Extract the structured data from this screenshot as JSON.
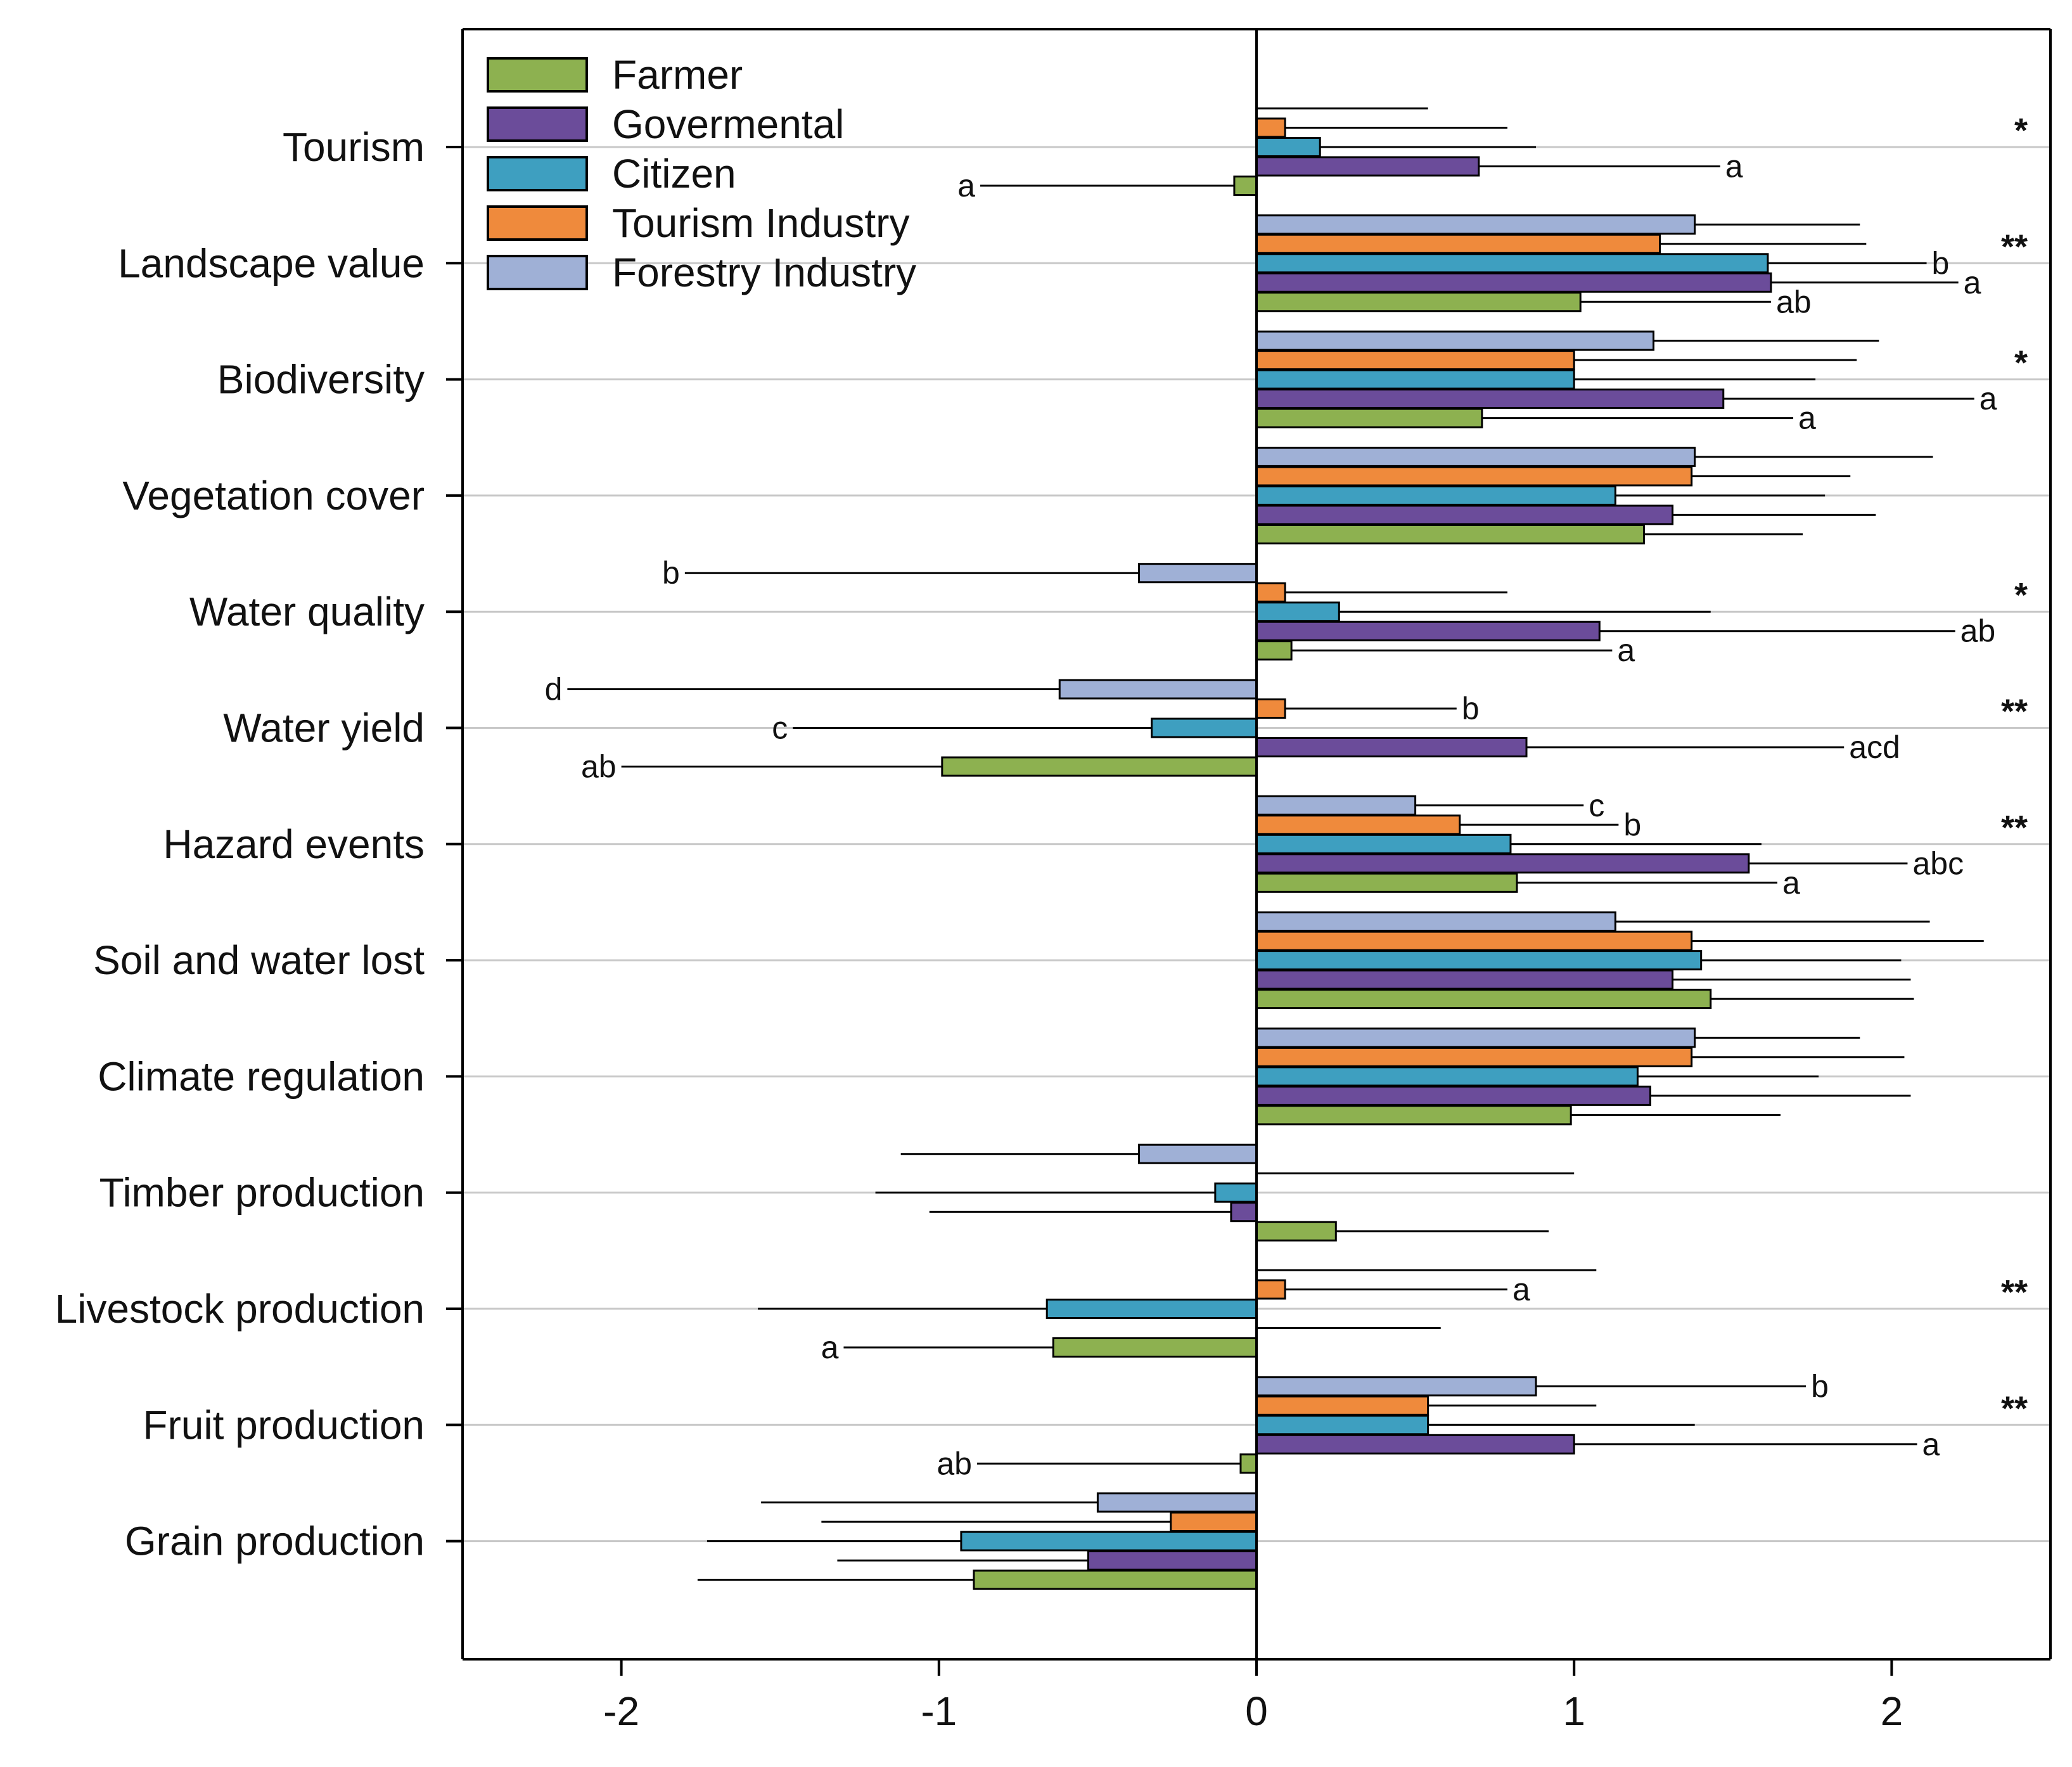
{
  "chart_data": {
    "type": "bar",
    "orientation": "horizontal",
    "title": "",
    "xlabel": "",
    "ylabel": "",
    "xlim": [
      -2.5,
      2.5
    ],
    "x_ticks": [
      -2,
      -1,
      0,
      1,
      2
    ],
    "x_tick_labels": [
      "-2",
      "-1",
      "0",
      "1",
      "2"
    ],
    "grid": "horizontal lines at categories",
    "legend_position": "top-left",
    "colors": {
      "Farmer": "#8db150",
      "Govermental": "#6b4c9a",
      "Citizen": "#3e9fc0",
      "Tourism Industry": "#ef8a3c",
      "Forestry Industry": "#9fb0d6",
      "axis": "#000000",
      "gridline": "#c8c8c8"
    },
    "legend": [
      "Farmer",
      "Govermental",
      "Citizen",
      "Tourism Industry",
      "Forestry Industry"
    ],
    "bar_order_bottom_to_top": [
      "Farmer",
      "Govermental",
      "Citizen",
      "Tourism Industry",
      "Forestry Industry"
    ],
    "categories": [
      "Tourism",
      "Landscape value",
      "Biodiversity",
      "Vegetation cover",
      "Water quality",
      "Water yield",
      "Hazard events",
      "Soil and water lost",
      "Climate regulation",
      "Timber production",
      "Livestock production",
      "Fruit production",
      "Grain production"
    ],
    "series": [
      {
        "name": "Farmer",
        "values": [
          -0.07,
          1.02,
          0.71,
          1.22,
          0.11,
          -0.99,
          0.82,
          1.43,
          0.99,
          0.25,
          -0.64,
          -0.05,
          -0.89
        ],
        "errors": [
          0.8,
          0.6,
          0.98,
          0.5,
          1.01,
          1.01,
          0.82,
          0.64,
          0.66,
          0.67,
          0.66,
          0.83,
          0.87
        ]
      },
      {
        "name": "Govermental",
        "values": [
          0.7,
          1.62,
          1.47,
          1.31,
          1.08,
          0.85,
          1.55,
          1.31,
          1.24,
          -0.08,
          0.0,
          1.0,
          -0.53
        ],
        "errors": [
          0.76,
          0.59,
          0.79,
          0.64,
          1.12,
          1.0,
          0.5,
          0.75,
          0.82,
          0.95,
          0.58,
          1.08,
          0.79
        ]
      },
      {
        "name": "Citizen",
        "values": [
          0.2,
          1.61,
          1.0,
          1.13,
          0.26,
          -0.33,
          0.8,
          1.4,
          1.2,
          -0.13,
          -0.66,
          0.54,
          -0.93
        ],
        "errors": [
          0.68,
          0.5,
          0.76,
          0.66,
          1.17,
          1.13,
          0.79,
          0.63,
          0.57,
          1.07,
          0.91,
          0.84,
          0.8
        ]
      },
      {
        "name": "Tourism Industry",
        "values": [
          0.09,
          1.27,
          1.0,
          1.37,
          0.09,
          0.09,
          0.64,
          1.37,
          1.37,
          0.0,
          0.09,
          0.54,
          -0.27
        ],
        "errors": [
          0.7,
          0.65,
          0.89,
          0.5,
          0.7,
          0.54,
          0.5,
          0.92,
          0.67,
          1.0,
          0.7,
          0.53,
          1.1
        ]
      },
      {
        "name": "Forestry Industry",
        "values": [
          0.0,
          1.38,
          1.25,
          1.38,
          -0.37,
          -0.62,
          0.5,
          1.13,
          1.38,
          -0.37,
          0.0,
          0.88,
          -0.5
        ],
        "errors": [
          0.54,
          0.52,
          0.71,
          0.75,
          1.43,
          1.55,
          0.53,
          0.99,
          0.52,
          0.75,
          1.07,
          0.85,
          1.06
        ]
      }
    ],
    "annotations": [
      {
        "category": "Tourism",
        "series": "Farmer",
        "text": "a"
      },
      {
        "category": "Tourism",
        "series": "Govermental",
        "text": "a"
      },
      {
        "category": "Landscape value",
        "series": "Farmer",
        "text": "ab"
      },
      {
        "category": "Landscape value",
        "series": "Govermental",
        "text": "a"
      },
      {
        "category": "Landscape value",
        "series": "Citizen",
        "text": "b"
      },
      {
        "category": "Biodiversity",
        "series": "Farmer",
        "text": "a"
      },
      {
        "category": "Biodiversity",
        "series": "Govermental",
        "text": "a"
      },
      {
        "category": "Water quality",
        "series": "Farmer",
        "text": "a"
      },
      {
        "category": "Water quality",
        "series": "Govermental",
        "text": "ab"
      },
      {
        "category": "Water quality",
        "series": "Forestry Industry",
        "text": "b"
      },
      {
        "category": "Water yield",
        "series": "Farmer",
        "text": "ab"
      },
      {
        "category": "Water yield",
        "series": "Govermental",
        "text": "acd"
      },
      {
        "category": "Water yield",
        "series": "Citizen",
        "text": "c"
      },
      {
        "category": "Water yield",
        "series": "Tourism Industry",
        "text": "b"
      },
      {
        "category": "Water yield",
        "series": "Forestry Industry",
        "text": "d"
      },
      {
        "category": "Hazard events",
        "series": "Farmer",
        "text": "a"
      },
      {
        "category": "Hazard events",
        "series": "Govermental",
        "text": "abc"
      },
      {
        "category": "Hazard events",
        "series": "Tourism Industry",
        "text": "b"
      },
      {
        "category": "Hazard events",
        "series": "Forestry Industry",
        "text": "c"
      },
      {
        "category": "Livestock production",
        "series": "Farmer",
        "text": "a"
      },
      {
        "category": "Livestock production",
        "series": "Tourism Industry",
        "text": "a"
      },
      {
        "category": "Fruit production",
        "series": "Farmer",
        "text": "ab"
      },
      {
        "category": "Fruit production",
        "series": "Govermental",
        "text": "a"
      },
      {
        "category": "Fruit production",
        "series": "Forestry Industry",
        "text": "b"
      }
    ],
    "significance": {
      "Tourism": "*",
      "Landscape value": "**",
      "Biodiversity": "*",
      "Water quality": "*",
      "Water yield": "**",
      "Hazard events": "**",
      "Livestock production": "**",
      "Fruit production": "**"
    }
  }
}
